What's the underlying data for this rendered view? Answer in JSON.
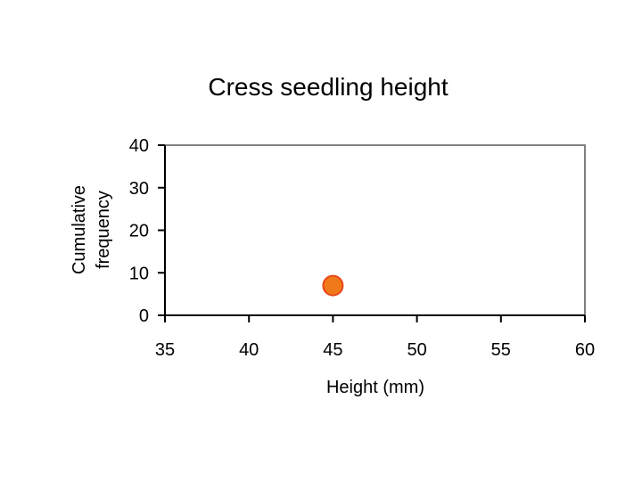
{
  "chart_data": {
    "type": "scatter",
    "title": "Cress seedling height",
    "xlabel": "Height (mm)",
    "ylabel": [
      "Cumulative",
      "frequency"
    ],
    "xlim": [
      35,
      60
    ],
    "ylim": [
      0,
      40
    ],
    "xticks": [
      35,
      40,
      45,
      50,
      55,
      60
    ],
    "yticks": [
      0,
      10,
      20,
      30,
      40
    ],
    "grid": false,
    "series": [
      {
        "points": [
          {
            "x": 45,
            "y": 7
          }
        ]
      }
    ],
    "colors": {
      "marker_fill": "#f07a1a",
      "marker_stroke": "#e8461a",
      "plot_border": "#808080",
      "axis": "#000000"
    }
  }
}
